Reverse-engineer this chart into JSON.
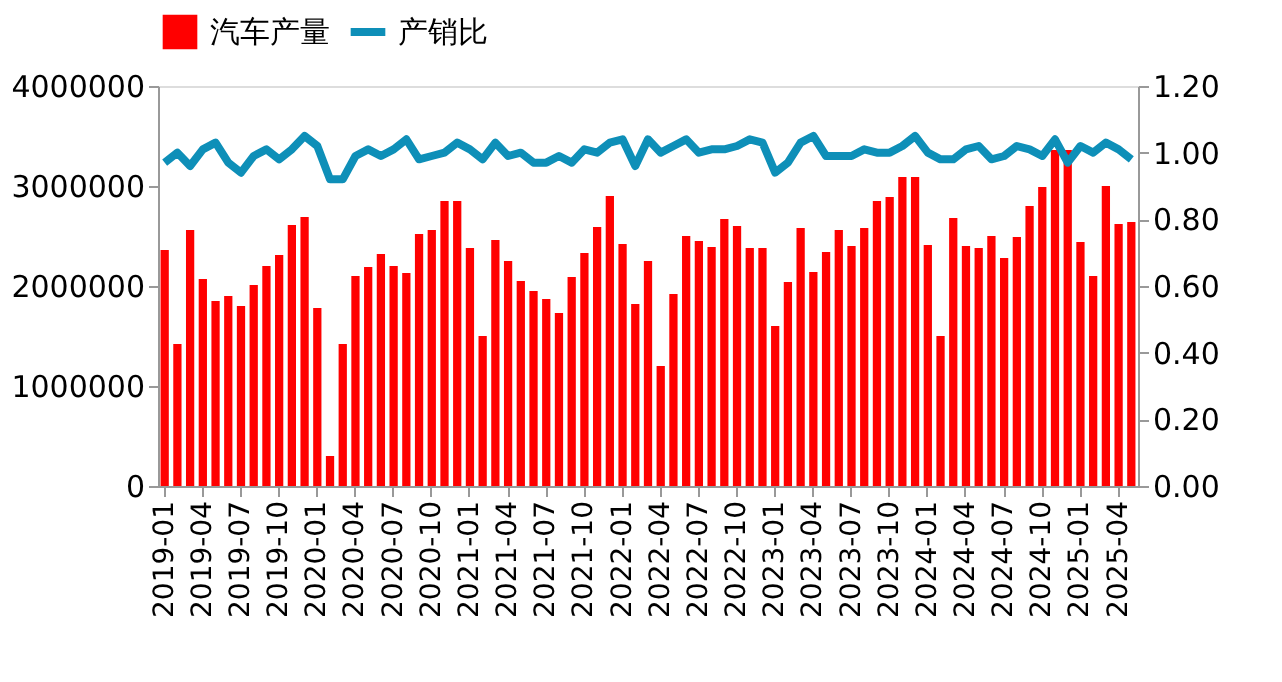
{
  "chart_data": {
    "type": "bar",
    "categories": [
      "2019-01",
      null,
      null,
      "2019-04",
      null,
      null,
      "2019-07",
      null,
      null,
      "2019-10",
      null,
      null,
      "2020-01",
      null,
      null,
      "2020-04",
      null,
      null,
      "2020-07",
      null,
      null,
      "2020-10",
      null,
      null,
      "2021-01",
      null,
      null,
      "2021-04",
      null,
      null,
      "2021-07",
      null,
      null,
      "2021-10",
      null,
      null,
      "2022-01",
      null,
      null,
      "2022-04",
      null,
      null,
      "2022-07",
      null,
      null,
      "2022-10",
      null,
      null,
      "2023-01",
      null,
      null,
      "2023-04",
      null,
      null,
      "2023-07",
      null,
      null,
      "2023-10",
      null,
      null,
      "2024-01",
      null,
      null,
      "2024-04",
      null,
      null,
      "2024-07",
      null,
      null,
      "2024-10",
      null,
      null,
      "2025-01",
      null,
      null,
      "2025-04",
      null
    ],
    "series": [
      {
        "name": "汽车产量",
        "color": "#ff0000",
        "values": [
          2360000,
          1420000,
          2560000,
          2070000,
          1850000,
          1900000,
          1800000,
          2010000,
          2200000,
          2310000,
          2610000,
          2690000,
          1780000,
          300000,
          1420000,
          2100000,
          2190000,
          2320000,
          2200000,
          2130000,
          2520000,
          2560000,
          2850000,
          2850000,
          2380000,
          1500000,
          2460000,
          2250000,
          2050000,
          1950000,
          1870000,
          1730000,
          2090000,
          2330000,
          2590000,
          2900000,
          2420000,
          1820000,
          2250000,
          1200000,
          1920000,
          2500000,
          2450000,
          2390000,
          2670000,
          2600000,
          2380000,
          2380000,
          1600000,
          2040000,
          2580000,
          2140000,
          2340000,
          2560000,
          2400000,
          2580000,
          2850000,
          2890000,
          3090000,
          3090000,
          2410000,
          1500000,
          2680000,
          2400000,
          2380000,
          2500000,
          2280000,
          2490000,
          2800000,
          2990000,
          3360000,
          3360000,
          2440000,
          2100000,
          3000000,
          2620000,
          2640000
        ]
      },
      {
        "name": "产销比",
        "type": "line",
        "axis": "y2",
        "color": "#0e8fb8",
        "values": [
          0.97,
          1.0,
          0.96,
          1.01,
          1.03,
          0.97,
          0.94,
          0.99,
          1.01,
          0.98,
          1.01,
          1.05,
          1.02,
          0.92,
          0.92,
          0.99,
          1.01,
          0.99,
          1.01,
          1.04,
          0.98,
          0.99,
          1.0,
          1.03,
          1.01,
          0.98,
          1.03,
          0.99,
          1.0,
          0.97,
          0.97,
          0.99,
          0.97,
          1.01,
          1.0,
          1.03,
          1.04,
          0.96,
          1.04,
          1.0,
          1.02,
          1.04,
          1.0,
          1.01,
          1.01,
          1.02,
          1.04,
          1.03,
          0.94,
          0.97,
          1.03,
          1.05,
          0.99,
          0.99,
          0.99,
          1.01,
          1.0,
          1.0,
          1.02,
          1.05,
          1.0,
          0.98,
          0.98,
          1.01,
          1.02,
          0.98,
          0.99,
          1.02,
          1.01,
          0.99,
          1.04,
          0.97,
          1.02,
          1.0,
          1.03,
          1.01,
          0.98
        ]
      }
    ],
    "ylim": [
      0,
      4000000
    ],
    "yticks": [
      0,
      1000000,
      2000000,
      3000000,
      4000000
    ],
    "y2lim": [
      0,
      1.2
    ],
    "y2ticks": [
      {
        "value": 0,
        "label": "0.00"
      },
      {
        "value": 0.2,
        "label": "0.20"
      },
      {
        "value": 0.4,
        "label": "0.40"
      },
      {
        "value": 0.6,
        "label": "0.60"
      },
      {
        "value": 0.8,
        "label": "0.80"
      },
      {
        "value": 1.0,
        "label": "1.00"
      },
      {
        "value": 1.2,
        "label": "1.20"
      }
    ],
    "grid": false,
    "legend": "top"
  }
}
